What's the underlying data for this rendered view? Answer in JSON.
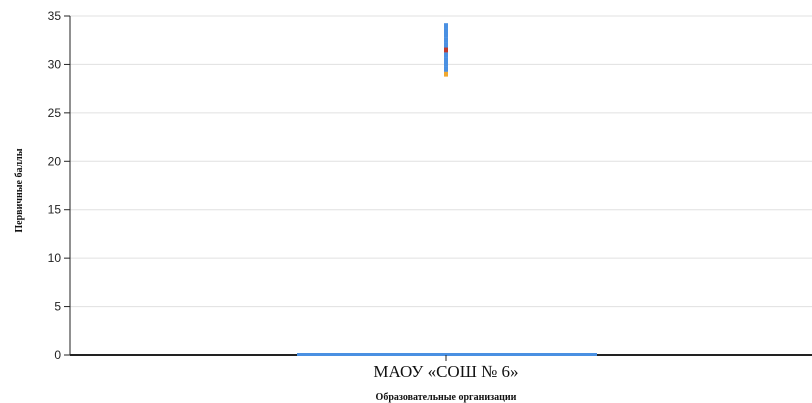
{
  "chart_data": {
    "type": "boxplot",
    "title": "",
    "xlabel": "Образовательные организации",
    "ylabel": "Первичные баллы",
    "categories": [
      "МАОУ «СОШ № 6»"
    ],
    "ylim": [
      0,
      35
    ],
    "yticks": [
      0,
      5,
      10,
      15,
      20,
      25,
      30,
      35
    ],
    "grid": true,
    "box": {
      "min": 0,
      "q1": 0,
      "median": 0,
      "q3": 0,
      "max": 0
    },
    "points": [
      {
        "y": 29,
        "color": "#f0a830"
      },
      {
        "y": 29.5,
        "color": "#4a90e2"
      },
      {
        "y": 30,
        "color": "#4a90e2"
      },
      {
        "y": 30.5,
        "color": "#4a90e2"
      },
      {
        "y": 31,
        "color": "#4a90e2"
      },
      {
        "y": 31.5,
        "color": "#c0392b"
      },
      {
        "y": 32,
        "color": "#4a90e2"
      },
      {
        "y": 32.5,
        "color": "#4a90e2"
      },
      {
        "y": 33,
        "color": "#4a90e2"
      },
      {
        "y": 33.5,
        "color": "#4a90e2"
      },
      {
        "y": 34,
        "color": "#4a90e2"
      }
    ],
    "colors": {
      "box": "#4a90e2",
      "grid": "#e0e0e0",
      "axis": "#222222"
    }
  }
}
